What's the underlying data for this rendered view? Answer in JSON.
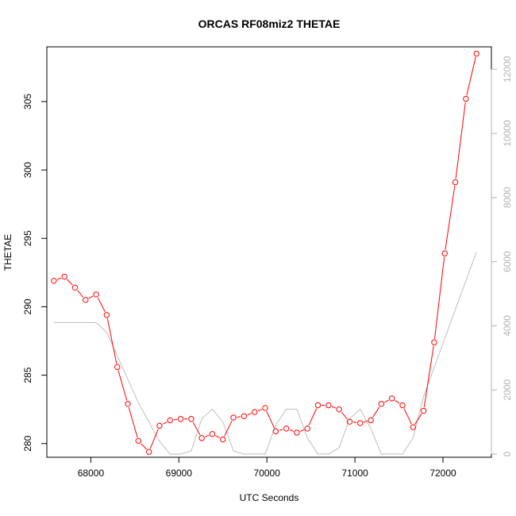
{
  "chart_data": {
    "type": "line",
    "title": "ORCAS RF08miz2 THETAE",
    "xlabel": "UTC Seconds",
    "ylabel": "THETAE",
    "xlim": [
      67500,
      72550
    ],
    "ylim": [
      279.0,
      309.0
    ],
    "y2lim": [
      -100,
      12700
    ],
    "xticks": [
      68000,
      69000,
      70000,
      71000,
      72000
    ],
    "yticks": [
      280,
      285,
      290,
      295,
      300,
      305
    ],
    "y2ticks": [
      0,
      2000,
      4000,
      6000,
      8000,
      10000,
      12000
    ],
    "grid": false,
    "legend": "none",
    "colors": {
      "thetae": "#ff0000",
      "secondary": "#bebebe"
    },
    "series": [
      {
        "axis": "left",
        "x": [
          67580,
          67700,
          67820,
          67940,
          68060,
          68180,
          68300,
          68420,
          68540,
          68660,
          68780,
          68900,
          69020,
          69140,
          69260,
          69380,
          69500,
          69620,
          69740,
          69860,
          69980,
          70100,
          70220,
          70340,
          70460,
          70580,
          70700,
          70820,
          70940,
          71060,
          71180,
          71300,
          71420,
          71540,
          71660,
          71780,
          71900,
          72020,
          72140,
          72260,
          72380
        ],
        "values": [
          291.9,
          292.2,
          291.4,
          290.5,
          290.9,
          289.4,
          285.6,
          282.9,
          280.2,
          279.4,
          281.3,
          281.7,
          281.8,
          281.8,
          280.4,
          280.7,
          280.3,
          281.9,
          282.0,
          282.3,
          282.6,
          280.9,
          281.1,
          280.8,
          281.1,
          282.8,
          282.8,
          282.5,
          281.6,
          281.5,
          281.7,
          282.9,
          283.3,
          282.8,
          281.2,
          282.4,
          287.4,
          293.9,
          299.1,
          305.2,
          308.5
        ]
      },
      {
        "axis": "right",
        "x": [
          67580,
          68060,
          68180,
          68540,
          68780,
          68900,
          69020,
          69140,
          69260,
          69380,
          69500,
          69620,
          69740,
          69860,
          69980,
          70100,
          70220,
          70340,
          70460,
          70580,
          70700,
          70820,
          70940,
          71060,
          71180,
          71300,
          71420,
          71540,
          71660,
          71780,
          72380
        ],
        "values": [
          4100,
          4100,
          3800,
          1600,
          400,
          0,
          0,
          100,
          1100,
          1400,
          1000,
          100,
          0,
          0,
          0,
          900,
          1400,
          1400,
          500,
          0,
          0,
          200,
          1100,
          1400,
          800,
          0,
          0,
          0,
          500,
          1800,
          6300
        ]
      }
    ]
  }
}
